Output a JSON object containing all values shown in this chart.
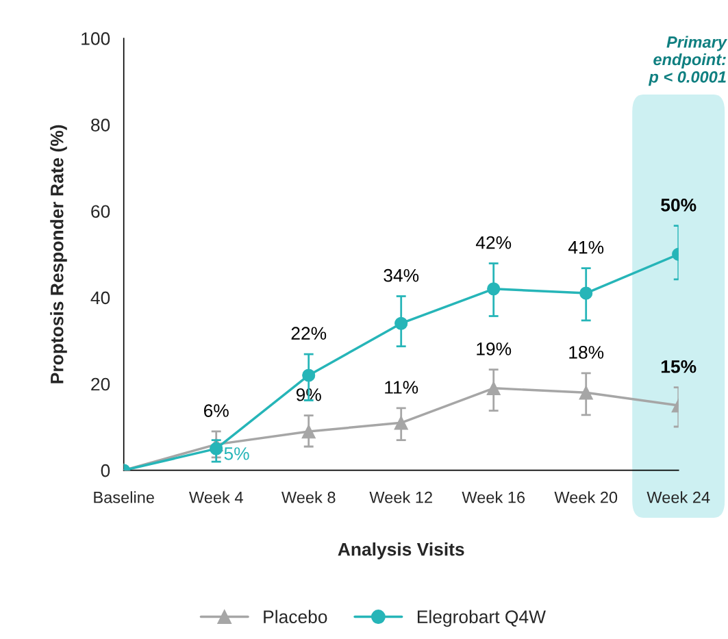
{
  "chart_data": {
    "type": "line",
    "xlabel": "Analysis Visits",
    "ylabel": "Proptosis Responder Rate (%)",
    "categories": [
      "Baseline",
      "Week 4",
      "Week 8",
      "Week 12",
      "Week 16",
      "Week 20",
      "Week 24"
    ],
    "ylim": [
      0,
      100
    ],
    "yticks": [
      0,
      20,
      40,
      60,
      80,
      100
    ],
    "grid": false,
    "legend": "bottom",
    "series": [
      {
        "name": "Placebo",
        "color": "#a6a6a6",
        "marker": "triangle",
        "values": [
          0,
          6,
          9,
          11,
          19,
          18,
          15
        ],
        "errors": [
          null,
          [
            3,
            9
          ],
          [
            5.5,
            12.7
          ],
          [
            7,
            14.4
          ],
          [
            13.8,
            23.3
          ],
          [
            12.8,
            22.5
          ],
          [
            10.1,
            19.2
          ]
        ],
        "value_labels": [
          null,
          "6%",
          "9%",
          "11%",
          "19%",
          "18%",
          "15%"
        ]
      },
      {
        "name": "Elegrobart Q4W",
        "color": "#26b5b8",
        "marker": "circle",
        "values": [
          0,
          5,
          22,
          34,
          42,
          41,
          50
        ],
        "errors": [
          null,
          [
            2,
            7
          ],
          [
            16.2,
            26.9
          ],
          [
            28.7,
            40.3
          ],
          [
            35.7,
            47.9
          ],
          [
            34.7,
            46.8
          ],
          [
            44.2,
            56.6
          ]
        ],
        "value_labels": [
          null,
          "5%",
          "22%",
          "34%",
          "42%",
          "41%",
          "50%"
        ]
      }
    ],
    "bands": [
      {
        "axis": "x",
        "from": "Week 24",
        "to": "Week 24",
        "label": "Primary\nendpoint:\np < 0.0001",
        "color": "#cdf0f2"
      }
    ]
  }
}
